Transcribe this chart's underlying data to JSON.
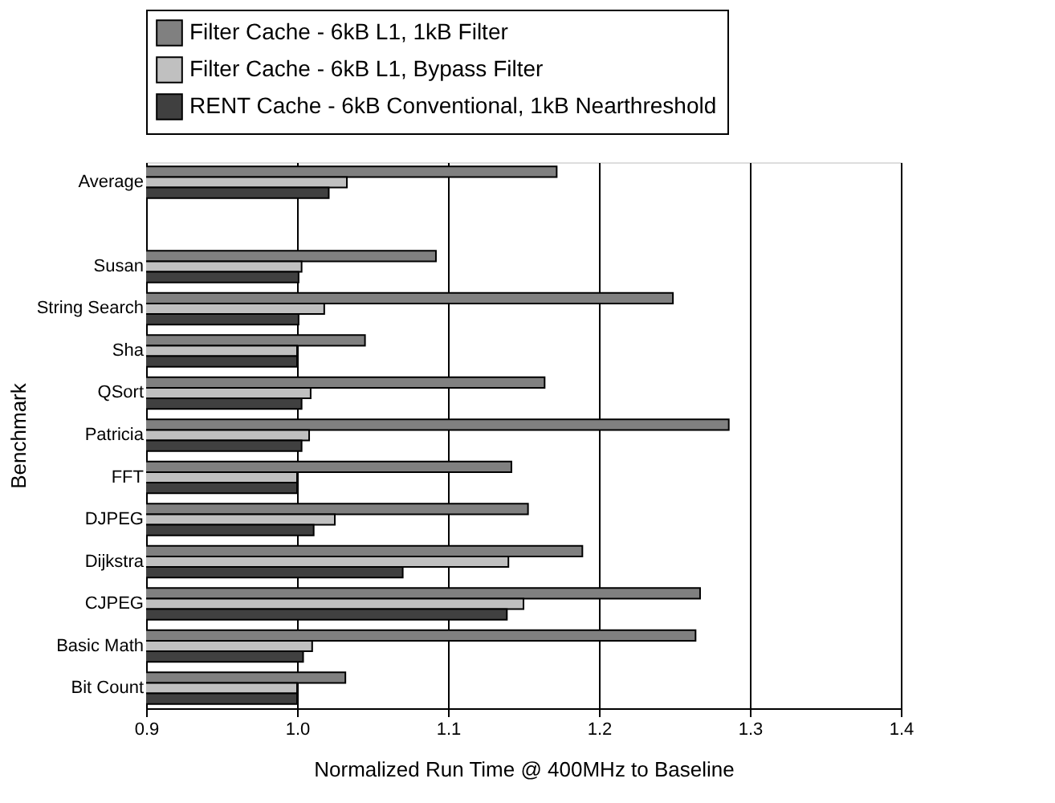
{
  "chart_data": {
    "type": "bar",
    "orientation": "horizontal",
    "xlabel": "Normalized Run Time @ 400MHz to Baseline",
    "ylabel": "Benchmark",
    "categories": [
      "Average",
      null,
      "Susan",
      "String Search",
      "Sha",
      "QSort",
      "Patricia",
      "FFT",
      "DJPEG",
      "Dijkstra",
      "CJPEG",
      "Basic Math",
      "Bit Count"
    ],
    "series": [
      {
        "name": "Filter Cache - 6kB L1, 1kB Filter",
        "color": "#808080",
        "values": [
          1.172,
          null,
          1.092,
          1.249,
          1.045,
          1.164,
          1.286,
          1.142,
          1.153,
          1.189,
          1.267,
          1.264,
          1.032
        ]
      },
      {
        "name": "Filter Cache - 6kB L1, Bypass Filter",
        "color": "#c0c0c0",
        "values": [
          1.033,
          null,
          1.003,
          1.018,
          1.0,
          1.009,
          1.008,
          1.0,
          1.025,
          1.14,
          1.15,
          1.01,
          1.0
        ]
      },
      {
        "name": "RENT Cache - 6kB Conventional, 1kB Nearthreshold",
        "color": "#404040",
        "values": [
          1.021,
          null,
          1.001,
          1.001,
          1.0,
          1.003,
          1.003,
          1.0,
          1.011,
          1.07,
          1.139,
          1.004,
          1.0
        ]
      }
    ],
    "xlim": [
      0.9,
      1.4
    ],
    "xticks": [
      0.9,
      {
        "value": 1,
        "label": "1.0"
      },
      1.1,
      1.2,
      1.3,
      1.4
    ],
    "grid": "x",
    "legend": "top"
  }
}
